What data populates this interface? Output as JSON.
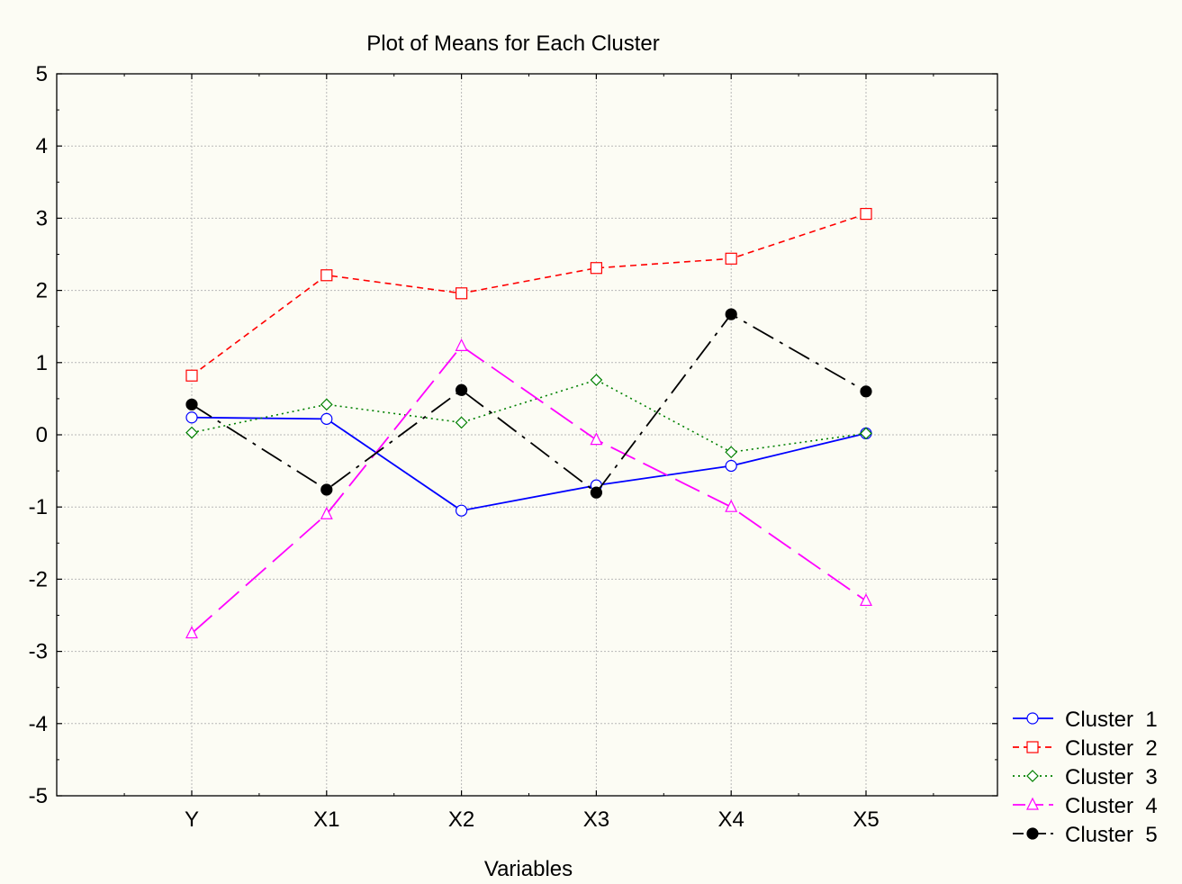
{
  "chart_data": {
    "type": "line",
    "title": "Plot of Means for Each Cluster",
    "xlabel": "Variables",
    "ylabel": "",
    "categories": [
      "Y",
      "X1",
      "X2",
      "X3",
      "X4",
      "X5"
    ],
    "ylim": [
      -5,
      5
    ],
    "yticks": [
      "5",
      "4",
      "3",
      "2",
      "1",
      "0",
      "-1",
      "-2",
      "-3",
      "-4",
      "-5"
    ],
    "grid": true,
    "legend_position": "bottom-right",
    "series": [
      {
        "name": "Cluster  1",
        "values": [
          0.24,
          0.22,
          -1.05,
          -0.7,
          -0.43,
          0.02
        ],
        "color": "#0000ff",
        "dash": "solid",
        "marker": "circle"
      },
      {
        "name": "Cluster  2",
        "values": [
          0.82,
          2.21,
          1.96,
          2.31,
          2.44,
          3.06
        ],
        "color": "#ff0000",
        "dash": "dashed",
        "marker": "square"
      },
      {
        "name": "Cluster  3",
        "values": [
          0.03,
          0.42,
          0.17,
          0.76,
          -0.24,
          0.02
        ],
        "color": "#008000",
        "dash": "dotted",
        "marker": "diamond"
      },
      {
        "name": "Cluster  4",
        "values": [
          -2.75,
          -1.1,
          1.23,
          -0.07,
          -1.0,
          -2.3
        ],
        "color": "#ff00ff",
        "dash": "longdash",
        "marker": "triangle"
      },
      {
        "name": "Cluster  5",
        "values": [
          0.42,
          -0.76,
          0.62,
          -0.8,
          1.67,
          0.6
        ],
        "color": "#000000",
        "dash": "dashdot",
        "marker": "filled-circle"
      }
    ]
  }
}
